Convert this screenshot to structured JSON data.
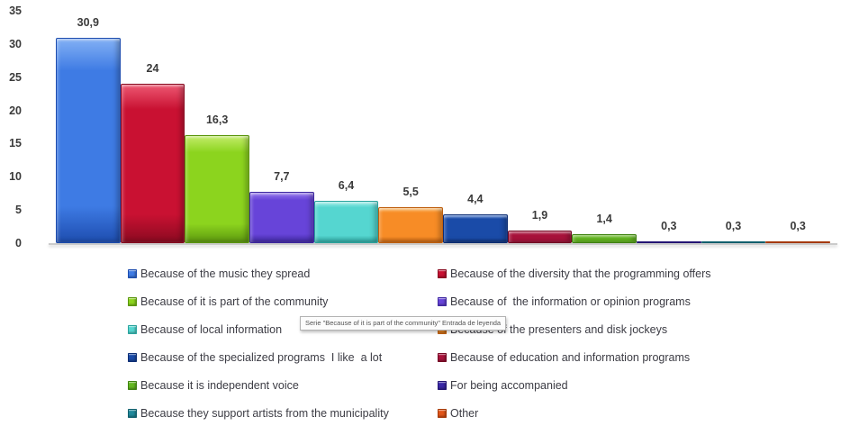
{
  "chart_data": {
    "type": "bar",
    "title": "",
    "xlabel": "",
    "ylabel": "",
    "ylim": [
      0,
      35
    ],
    "grid": false,
    "legend_position": "bottom-two-columns",
    "y_ticks": [
      "35",
      "30",
      "25",
      "20",
      "15",
      "10",
      "5",
      "0"
    ],
    "categories": [
      "Because of the music they spread",
      "Because of the diversity that the programming offers",
      "Because of it is part of the community",
      "Because of  the information or opinion programs",
      "Because of local information",
      "Because of the presenters and disk jockeys",
      "Because of the specialized programs  I like  a lot",
      "Because of education and information programs",
      "Because it is independent voice",
      "For being accompanied",
      "Because they support artists from the municipality",
      "Other"
    ],
    "values": [
      30.9,
      24,
      16.3,
      7.7,
      6.4,
      5.5,
      4.4,
      1.9,
      1.4,
      0.3,
      0.3,
      0.3
    ],
    "value_labels": [
      "30,9",
      "24",
      "16,3",
      "7,7",
      "6,4",
      "5,5",
      "4,4",
      "1,9",
      "1,4",
      "0,3",
      "0,3",
      "0,3"
    ],
    "colors": [
      {
        "fill": "#3e7be4",
        "light": "#85b2f5",
        "dark": "#1d4cae"
      },
      {
        "fill": "#c91132",
        "light": "#ee5a74",
        "dark": "#880a20"
      },
      {
        "fill": "#8cd41e",
        "light": "#c6ee6e",
        "dark": "#5a950e"
      },
      {
        "fill": "#6744d9",
        "light": "#9d80ef",
        "dark": "#3d27a0"
      },
      {
        "fill": "#55d6d0",
        "light": "#a8f1ec",
        "dark": "#2aa49e"
      },
      {
        "fill": "#f78c26",
        "light": "#fbc173",
        "dark": "#bf5f0f"
      },
      {
        "fill": "#1a4ba8",
        "light": "#4e80d8",
        "dark": "#0d2e74"
      },
      {
        "fill": "#a8123b",
        "light": "#d14e6b",
        "dark": "#730722"
      },
      {
        "fill": "#63b71f",
        "light": "#a1e05c",
        "dark": "#3e8210"
      },
      {
        "fill": "#3a28a8",
        "light": "#6b55d2",
        "dark": "#231574"
      },
      {
        "fill": "#20899b",
        "light": "#50b7c5",
        "dark": "#0f5f6d"
      },
      {
        "fill": "#e25518",
        "light": "#f58d55",
        "dark": "#a53907"
      }
    ]
  },
  "tooltip": {
    "text": "Serie \"Because of it is part of the community\" Entrada de leyenda"
  }
}
